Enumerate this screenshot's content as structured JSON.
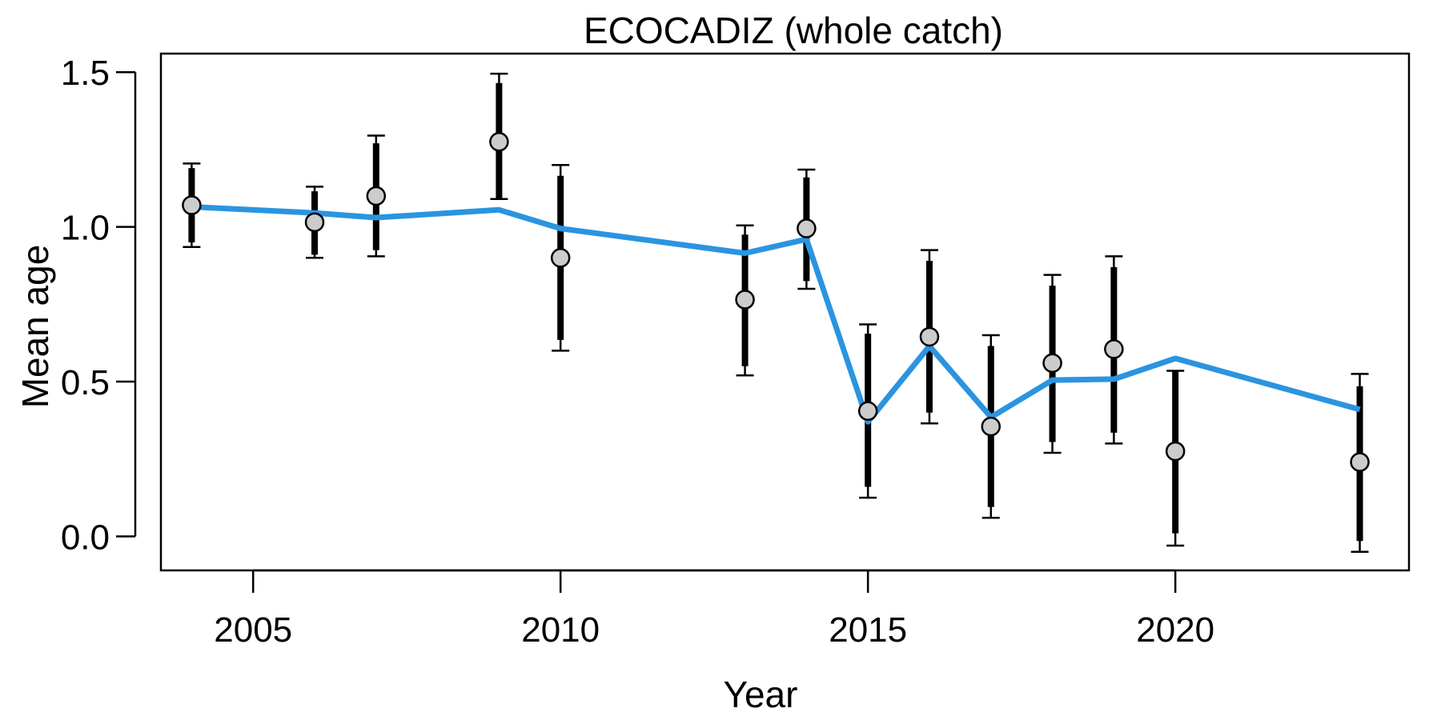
{
  "chart_data": {
    "type": "line",
    "title": "ECOCADIZ (whole catch)",
    "xlabel": "Year",
    "ylabel": "Mean age",
    "xlim": [
      2003.5,
      2023.8
    ],
    "ylim": [
      -0.11,
      1.56
    ],
    "xticks": [
      2005,
      2010,
      2015,
      2020
    ],
    "yticks": [
      "0.0",
      "0.5",
      "1.0",
      "1.5"
    ],
    "grid": false,
    "series": [
      {
        "kind": "observed",
        "marker": "circle",
        "x": [
          2004,
          2006,
          2007,
          2009,
          2010,
          2013,
          2014,
          2015,
          2016,
          2017,
          2018,
          2019,
          2020,
          2023
        ],
        "y": [
          1.07,
          1.015,
          1.1,
          1.275,
          0.9,
          0.765,
          0.995,
          0.405,
          0.645,
          0.355,
          0.56,
          0.605,
          0.275,
          0.24
        ],
        "ci_outer_low": [
          0.935,
          0.9,
          0.905,
          1.09,
          0.6,
          0.52,
          0.8,
          0.125,
          0.365,
          0.06,
          0.27,
          0.3,
          -0.03,
          -0.05
        ],
        "ci_outer_high": [
          1.205,
          1.13,
          1.295,
          1.495,
          1.2,
          1.005,
          1.185,
          0.685,
          0.925,
          0.65,
          0.845,
          0.905,
          0.535,
          0.525
        ],
        "ci_inner_low": [
          0.95,
          0.91,
          0.925,
          1.09,
          0.635,
          0.55,
          0.825,
          0.16,
          0.4,
          0.095,
          0.305,
          0.335,
          0.01,
          -0.015
        ],
        "ci_inner_high": [
          1.19,
          1.115,
          1.27,
          1.465,
          1.165,
          0.975,
          1.16,
          0.655,
          0.89,
          0.615,
          0.81,
          0.87,
          0.535,
          0.485
        ]
      },
      {
        "kind": "fitted",
        "x": [
          2004,
          2006,
          2007,
          2009,
          2010,
          2013,
          2014,
          2015,
          2016,
          2017,
          2018,
          2019,
          2020,
          2023
        ],
        "y": [
          1.065,
          1.045,
          1.03,
          1.055,
          0.995,
          0.915,
          0.96,
          0.37,
          0.615,
          0.385,
          0.505,
          0.508,
          0.575,
          0.41
        ]
      }
    ],
    "colors": {
      "fitted_line": "#2B94E0",
      "marker_fill": "#CCCCCC",
      "marker_stroke": "#000000",
      "error_bar": "#000000"
    }
  }
}
